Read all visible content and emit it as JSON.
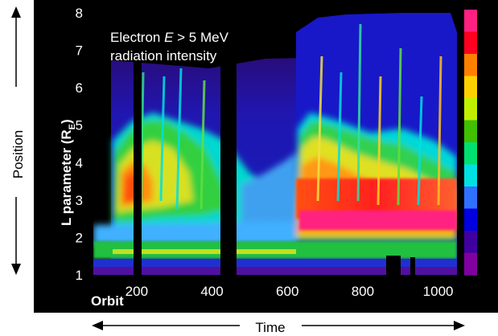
{
  "chart_data": {
    "type": "heatmap",
    "title_line1": "Electron ",
    "title_E": "E",
    "title_rest": " > 5 MeV",
    "title_line2": "radiation intensity",
    "ylabel_main": "L parameter (R",
    "ylabel_sub": "E",
    "ylabel_close": ")",
    "xlabel": "Orbit",
    "x_ticks": [
      "200",
      "400",
      "600",
      "800",
      "1000"
    ],
    "y_ticks": [
      "1",
      "2",
      "3",
      "4",
      "5",
      "6",
      "7",
      "8"
    ],
    "xlim": [
      85,
      1050
    ],
    "ylim": [
      1,
      8
    ],
    "side_labels": {
      "vertical": "Position",
      "horizontal": "Time"
    },
    "colorbar": [
      "#ff2080",
      "#ff0020",
      "#ff8000",
      "#ffd000",
      "#c0f000",
      "#40c000",
      "#00e070",
      "#00e0e0",
      "#3070ff",
      "#0000e0",
      "#4000a0",
      "#8000a0"
    ],
    "data_gaps": [
      {
        "x": [
          140,
          150
        ],
        "ylim": [
          1.2,
          7.7
        ]
      },
      {
        "x": [
          365,
          405
        ],
        "ylim": [
          1.2,
          7.8
        ]
      }
    ]
  }
}
